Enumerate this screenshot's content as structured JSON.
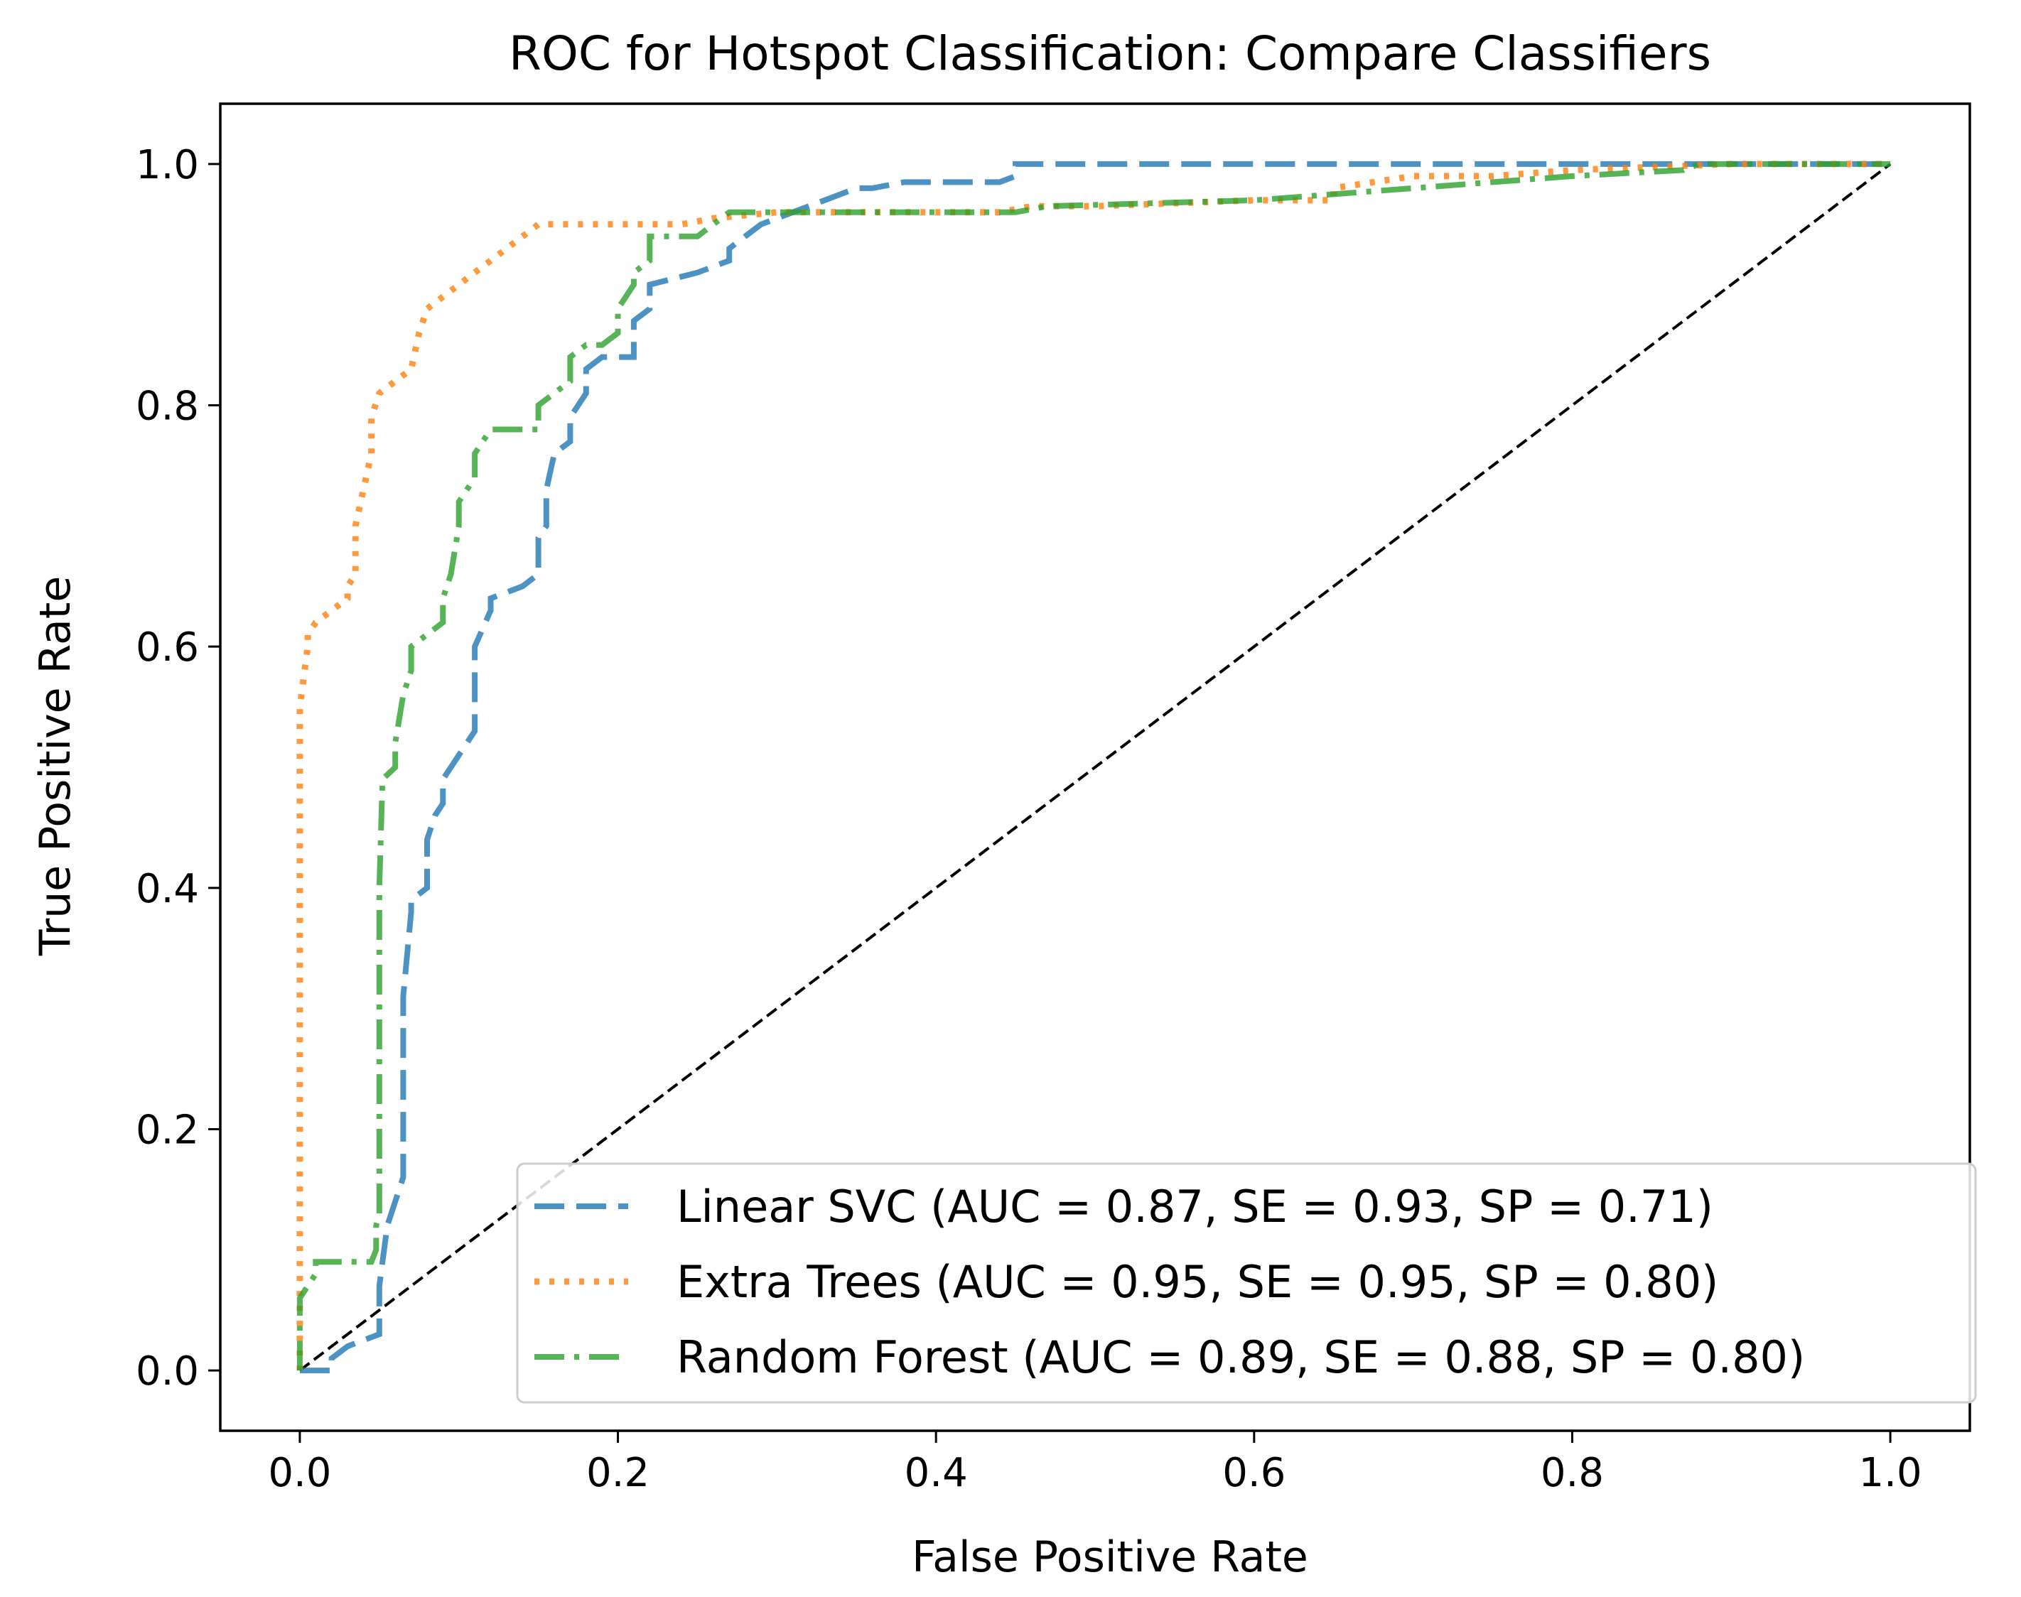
{
  "chart_data": {
    "type": "line",
    "title": "ROC for Hotspot Classification: Compare Classifiers",
    "xlabel": "False Positive Rate",
    "ylabel": "True Positive Rate",
    "xlim": [
      -0.05,
      1.05
    ],
    "ylim": [
      -0.05,
      1.05
    ],
    "xticks": [
      0.0,
      0.2,
      0.4,
      0.6,
      0.8,
      1.0
    ],
    "yticks": [
      0.0,
      0.2,
      0.4,
      0.6,
      0.8,
      1.0
    ],
    "xtick_labels": [
      "0.0",
      "0.2",
      "0.4",
      "0.6",
      "0.8",
      "1.0"
    ],
    "ytick_labels": [
      "0.0",
      "0.2",
      "0.4",
      "0.6",
      "0.8",
      "1.0"
    ],
    "grid": false,
    "legend_position": "lower-right",
    "diagonal": {
      "name": "chance",
      "x": [
        0,
        1
      ],
      "y": [
        0,
        1
      ],
      "color": "#000000",
      "style": "dashed"
    },
    "series": [
      {
        "name": "Linear SVC (AUC = 0.87, SE = 0.93, SP = 0.71)",
        "color": "#1f77b4",
        "style": "dashed",
        "x": [
          0.0,
          0.02,
          0.02,
          0.03,
          0.05,
          0.05,
          0.055,
          0.06,
          0.065,
          0.065,
          0.07,
          0.07,
          0.08,
          0.08,
          0.085,
          0.09,
          0.09,
          0.1,
          0.11,
          0.11,
          0.12,
          0.12,
          0.14,
          0.15,
          0.15,
          0.155,
          0.155,
          0.16,
          0.17,
          0.17,
          0.18,
          0.18,
          0.19,
          0.21,
          0.21,
          0.22,
          0.22,
          0.25,
          0.27,
          0.27,
          0.29,
          0.31,
          0.33,
          0.35,
          0.36,
          0.38,
          0.44,
          0.45,
          0.45,
          0.47,
          1.0
        ],
        "y": [
          0.0,
          0.0,
          0.01,
          0.02,
          0.03,
          0.07,
          0.12,
          0.14,
          0.16,
          0.31,
          0.38,
          0.39,
          0.4,
          0.44,
          0.46,
          0.47,
          0.49,
          0.51,
          0.53,
          0.6,
          0.63,
          0.64,
          0.65,
          0.66,
          0.69,
          0.7,
          0.73,
          0.76,
          0.77,
          0.79,
          0.81,
          0.83,
          0.84,
          0.84,
          0.87,
          0.88,
          0.9,
          0.91,
          0.92,
          0.93,
          0.95,
          0.96,
          0.97,
          0.98,
          0.98,
          0.985,
          0.985,
          0.99,
          1.0,
          1.0,
          1.0
        ]
      },
      {
        "name": "Extra Trees (AUC = 0.95, SE = 0.95, SP = 0.80)",
        "color": "#ff7f0e",
        "style": "dotted",
        "x": [
          0.0,
          0.0,
          0.0,
          0.005,
          0.005,
          0.01,
          0.02,
          0.03,
          0.03,
          0.035,
          0.035,
          0.04,
          0.045,
          0.045,
          0.05,
          0.06,
          0.07,
          0.075,
          0.08,
          0.09,
          0.1,
          0.11,
          0.12,
          0.14,
          0.15,
          0.18,
          0.2,
          0.22,
          0.24,
          0.26,
          0.3,
          0.44,
          0.46,
          0.5,
          0.6,
          0.65,
          0.65,
          0.7,
          0.75,
          0.8,
          0.9,
          1.0
        ],
        "y": [
          0.0,
          0.07,
          0.55,
          0.6,
          0.61,
          0.62,
          0.63,
          0.64,
          0.65,
          0.66,
          0.7,
          0.73,
          0.76,
          0.79,
          0.81,
          0.82,
          0.83,
          0.86,
          0.88,
          0.89,
          0.9,
          0.91,
          0.92,
          0.94,
          0.95,
          0.95,
          0.95,
          0.95,
          0.95,
          0.955,
          0.96,
          0.96,
          0.965,
          0.965,
          0.97,
          0.97,
          0.98,
          0.99,
          0.99,
          0.995,
          1.0,
          1.0
        ]
      },
      {
        "name": "Random Forest (AUC = 0.89, SE = 0.88, SP = 0.80)",
        "color": "#2ca02c",
        "style": "dashdot",
        "x": [
          0.0,
          0.0,
          0.005,
          0.01,
          0.01,
          0.02,
          0.045,
          0.048,
          0.048,
          0.05,
          0.05,
          0.052,
          0.06,
          0.06,
          0.065,
          0.07,
          0.07,
          0.08,
          0.09,
          0.09,
          0.095,
          0.1,
          0.1,
          0.11,
          0.11,
          0.12,
          0.13,
          0.14,
          0.15,
          0.15,
          0.17,
          0.17,
          0.18,
          0.19,
          0.2,
          0.2,
          0.21,
          0.21,
          0.22,
          0.22,
          0.25,
          0.26,
          0.27,
          0.3,
          0.35,
          0.45,
          0.47,
          0.6,
          0.65,
          0.7,
          0.8,
          0.87,
          0.88,
          1.0
        ],
        "y": [
          0.0,
          0.06,
          0.07,
          0.08,
          0.09,
          0.09,
          0.09,
          0.1,
          0.12,
          0.13,
          0.4,
          0.49,
          0.5,
          0.52,
          0.56,
          0.58,
          0.6,
          0.61,
          0.62,
          0.64,
          0.66,
          0.7,
          0.72,
          0.74,
          0.76,
          0.78,
          0.78,
          0.78,
          0.78,
          0.8,
          0.82,
          0.84,
          0.85,
          0.85,
          0.86,
          0.88,
          0.9,
          0.91,
          0.92,
          0.94,
          0.94,
          0.95,
          0.96,
          0.96,
          0.96,
          0.96,
          0.965,
          0.97,
          0.975,
          0.98,
          0.99,
          0.995,
          1.0,
          1.0
        ]
      }
    ]
  }
}
